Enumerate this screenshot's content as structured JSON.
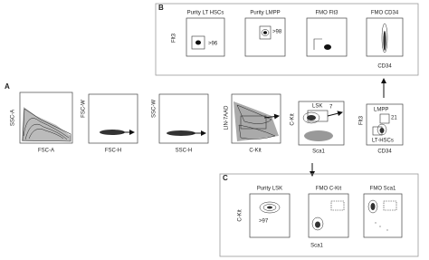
{
  "panels": {
    "A": {
      "label": "A",
      "plots": [
        {
          "x_label": "FSC-A",
          "y_label": "SSC-A"
        },
        {
          "x_label": "FSC-H",
          "y_label": "FSC-W"
        },
        {
          "x_label": "SSC-H",
          "y_label": "SSC-W"
        },
        {
          "x_label": "C-Kit",
          "y_label": "LIN-7AAD"
        },
        {
          "x_label": "Sca1",
          "y_label": "C-Kit",
          "gate_labels": [
            "LSK",
            "7"
          ]
        },
        {
          "x_label": "CD34",
          "y_label": "Flt3",
          "gate_labels": [
            "LMPP",
            "21",
            "LT-HSCs"
          ]
        }
      ]
    },
    "B": {
      "label": "B",
      "y_label": "Flt3",
      "x_label": "CD34",
      "plots": [
        {
          "title": "Purity LT HSCs",
          "gate_label": ">96"
        },
        {
          "title": "Purity LMPP",
          "gate_label": ">98"
        },
        {
          "title": "FMO Flt3"
        },
        {
          "title": "FMO CD34"
        }
      ]
    },
    "C": {
      "label": "C",
      "y_label": "C-Kit",
      "x_label": "Sca1",
      "plots": [
        {
          "title": "Purity LSK",
          "gate_label": ">97"
        },
        {
          "title": "FMO C-Kit"
        },
        {
          "title": "FMO Sca1"
        }
      ]
    }
  }
}
